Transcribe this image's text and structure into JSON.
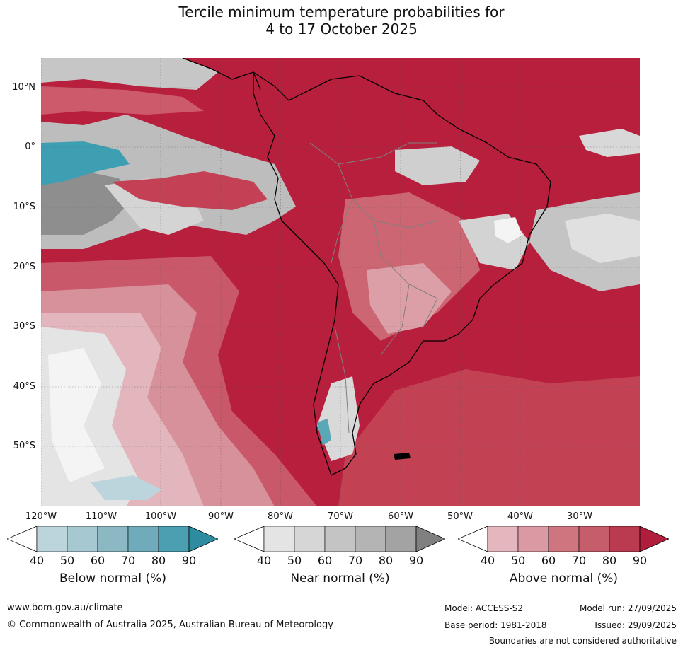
{
  "title": {
    "line1": "Tercile minimum temperature probabilities for",
    "line2": "4 to 17 October 2025"
  },
  "map": {
    "region": "South America",
    "lat_labels": [
      "10°N",
      "0°",
      "10°S",
      "20°S",
      "30°S",
      "40°S",
      "50°S"
    ],
    "lon_labels": [
      "120°W",
      "110°W",
      "100°W",
      "90°W",
      "80°W",
      "70°W",
      "60°W",
      "50°W",
      "40°W",
      "30°W"
    ]
  },
  "legends": [
    {
      "title": "Below normal (%)",
      "ticks": [
        "40",
        "50",
        "60",
        "70",
        "80",
        "90"
      ],
      "colors": [
        "#ffffff",
        "#bcd5dc",
        "#a6c8d0",
        "#8cb8c4",
        "#6fabbb",
        "#4c9fb0",
        "#2e8ca0"
      ]
    },
    {
      "title": "Near normal (%)",
      "ticks": [
        "40",
        "50",
        "60",
        "70",
        "80",
        "90"
      ],
      "colors": [
        "#ffffff",
        "#e4e4e4",
        "#d6d6d6",
        "#c4c4c4",
        "#b4b4b4",
        "#a3a3a3",
        "#808080"
      ]
    },
    {
      "title": "Above normal (%)",
      "ticks": [
        "40",
        "50",
        "60",
        "70",
        "80",
        "90"
      ],
      "colors": [
        "#ffffff",
        "#e3b7bd",
        "#d99aa3",
        "#cf757f",
        "#c65d6b",
        "#ba3a50",
        "#b01e3b"
      ]
    }
  ],
  "footer": {
    "url": "www.bom.gov.au/climate",
    "copyright": "© Commonwealth of Australia 2025, Australian Bureau of Meteorology",
    "model": "Model: ACCESS-S2",
    "model_run": "Model run: 27/09/2025",
    "base_period": "Base period: 1981-2018",
    "issued": "Issued: 29/09/2025",
    "disclaimer": "Boundaries are not considered authoritative"
  }
}
